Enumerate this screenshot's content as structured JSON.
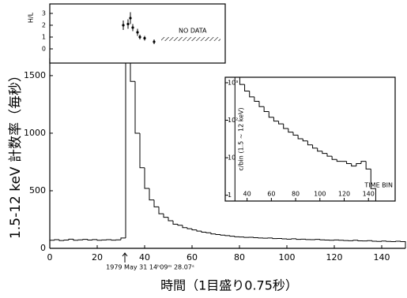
{
  "chart_data": [
    {
      "type": "histogram",
      "ylabel": "1.5-12 keV 計数率（毎秒）",
      "xlabel": "時間（1目盛り0.75秒）",
      "annotation": "1979 May 31 14ʰ09ᵐ 28.07ˢ",
      "color": "#000000",
      "bins": [
        0,
        2,
        4,
        6,
        8,
        10,
        12,
        14,
        16,
        18,
        20,
        22,
        24,
        26,
        28,
        30,
        32,
        34,
        36,
        38,
        40,
        42,
        44,
        46,
        48,
        50,
        52,
        54,
        56,
        58,
        60,
        62,
        64,
        66,
        68,
        70,
        72,
        74,
        76,
        78,
        80,
        82,
        84,
        86,
        88,
        90,
        92,
        94,
        96,
        98,
        100,
        102,
        104,
        106,
        108,
        110,
        112,
        114,
        116,
        118,
        120,
        122,
        124,
        126,
        128,
        130,
        132,
        134,
        136,
        138,
        140,
        142,
        144,
        146,
        148,
        150
      ],
      "values": [
        70,
        75,
        68,
        72,
        80,
        70,
        74,
        78,
        72,
        76,
        70,
        73,
        75,
        71,
        74,
        90,
        1640,
        1450,
        1000,
        700,
        520,
        420,
        360,
        300,
        270,
        240,
        210,
        200,
        180,
        170,
        160,
        150,
        140,
        135,
        125,
        120,
        115,
        110,
        105,
        100,
        98,
        95,
        96,
        92,
        90,
        88,
        90,
        85,
        86,
        82,
        80,
        83,
        78,
        80,
        76,
        75,
        78,
        74,
        72,
        70,
        73,
        70,
        68,
        66,
        70,
        65,
        64,
        67,
        62,
        60,
        63,
        60,
        58,
        62,
        58
      ],
      "xlim": [
        0,
        150
      ],
      "ylim": [
        0,
        1650
      ],
      "xticks": [
        0,
        20,
        40,
        60,
        80,
        100,
        120,
        140
      ],
      "yticks": [
        0,
        500,
        1000,
        1500
      ]
    },
    {
      "type": "scatter",
      "ylabel": "H/L",
      "annotation": "NO DATA",
      "color": "#000000",
      "x": [
        31,
        33,
        34,
        35,
        37,
        38,
        40,
        44
      ],
      "values": [
        2.0,
        2.1,
        2.6,
        1.8,
        1.4,
        1.0,
        0.9,
        0.6
      ],
      "errors": [
        0.4,
        0.4,
        0.5,
        0.3,
        0.3,
        0.2,
        0.2,
        0.2
      ],
      "hatched_range": [
        47,
        72
      ],
      "xlim": [
        0,
        74
      ],
      "ylim": [
        -1.2,
        3.8
      ],
      "yticks": [
        0,
        1,
        2,
        3
      ]
    },
    {
      "type": "histogram",
      "ylabel": "c/bin (1.5 ~ 12 keV)",
      "xlabel": "TIME BIN",
      "color": "#000000",
      "log_y": true,
      "bins": [
        30,
        34,
        38,
        42,
        46,
        50,
        54,
        58,
        62,
        66,
        70,
        74,
        78,
        82,
        86,
        90,
        94,
        98,
        102,
        106,
        110,
        114,
        118,
        122,
        126,
        130,
        134,
        138,
        142,
        146
      ],
      "values": [
        1400,
        900,
        600,
        420,
        320,
        230,
        170,
        120,
        95,
        80,
        60,
        48,
        40,
        32,
        28,
        22,
        18,
        15,
        13,
        11,
        9,
        8,
        8,
        7,
        6,
        7,
        8,
        5,
        1.5
      ],
      "xlim": [
        22,
        162
      ],
      "ylim": [
        0.7,
        1400
      ],
      "xticks": [
        40,
        60,
        80,
        100,
        120,
        140
      ],
      "yticks": [
        {
          "value": 1,
          "label": "1"
        },
        {
          "value": 10,
          "label": "10"
        },
        {
          "value": 100,
          "label": "10²"
        },
        {
          "value": 1000,
          "label": "10³"
        }
      ]
    }
  ]
}
